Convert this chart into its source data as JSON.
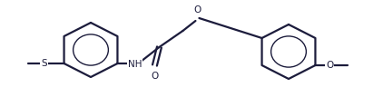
{
  "bg_color": "#ffffff",
  "line_color": "#1c1c3c",
  "lw": 1.6,
  "fs": 7.5,
  "figsize": [
    4.22,
    1.07
  ],
  "dpi": 100,
  "xlim": [
    0,
    422
  ],
  "ylim": [
    0,
    107
  ],
  "r1cx": 100,
  "r1cy": 52,
  "r1rx": 34,
  "r1ry": 30,
  "r2cx": 318,
  "r2cy": 50,
  "r2rx": 34,
  "r2ry": 30,
  "inner_scale": 0.57
}
